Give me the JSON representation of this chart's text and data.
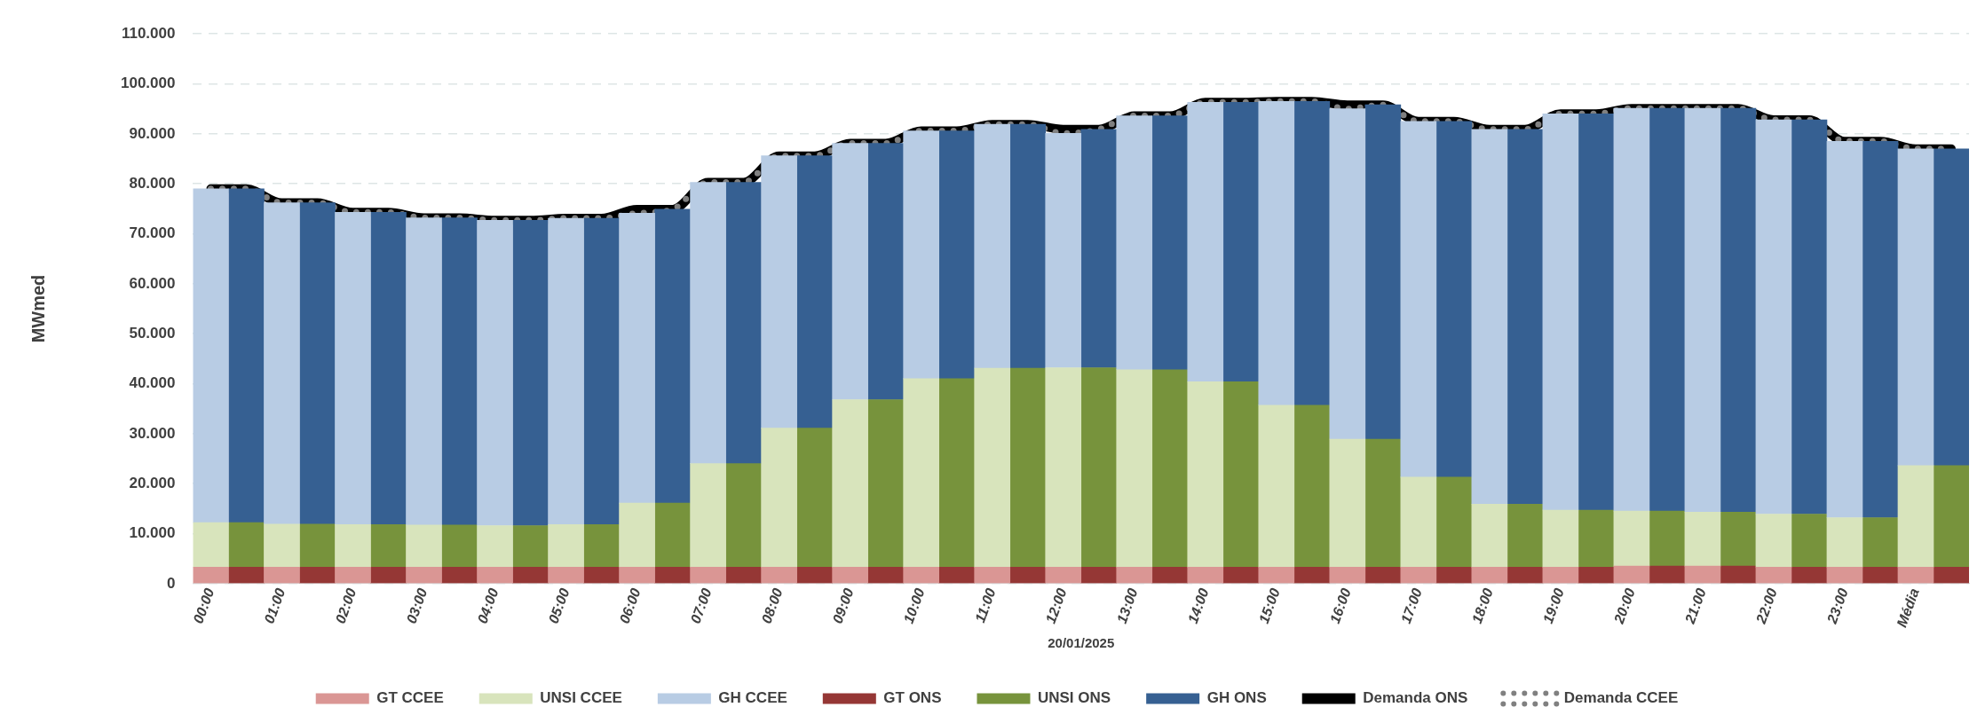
{
  "chart_data": {
    "type": "bar",
    "stacked": true,
    "xlabel": "20/01/2025",
    "ylabel": "MWmed",
    "categories": [
      "00:00",
      null,
      "01:00",
      null,
      "02:00",
      null,
      "03:00",
      null,
      "04:00",
      null,
      "05:00",
      null,
      "06:00",
      null,
      "07:00",
      null,
      "08:00",
      null,
      "09:00",
      null,
      "10:00",
      null,
      "11:00",
      null,
      "12:00",
      null,
      "13:00",
      null,
      "14:00",
      null,
      "15:00",
      null,
      "16:00",
      null,
      "17:00",
      null,
      "18:00",
      null,
      "19:00",
      null,
      "20:00",
      null,
      "21:00",
      null,
      "22:00",
      null,
      "23:00",
      null,
      "Média",
      null
    ],
    "series": [
      {
        "name": "GT CCEE",
        "color": "#da9694",
        "values": [
          3300,
          null,
          3300,
          null,
          3300,
          null,
          3300,
          null,
          3300,
          null,
          3300,
          null,
          3300,
          null,
          3300,
          null,
          3300,
          null,
          3300,
          null,
          3300,
          null,
          3300,
          null,
          3300,
          null,
          3300,
          null,
          3300,
          null,
          3300,
          null,
          3300,
          null,
          3300,
          null,
          3300,
          null,
          3300,
          null,
          3500,
          null,
          3500,
          null,
          3300,
          null,
          3300,
          null,
          3300,
          null
        ]
      },
      {
        "name": "UNSI CCEE",
        "color": "#d8e4bc",
        "values": [
          8900,
          null,
          8600,
          null,
          8500,
          null,
          8400,
          null,
          8300,
          null,
          8500,
          null,
          12800,
          null,
          20700,
          null,
          27800,
          null,
          33500,
          null,
          37700,
          null,
          39800,
          null,
          39900,
          null,
          39500,
          null,
          37100,
          null,
          32400,
          null,
          25600,
          null,
          18000,
          null,
          12600,
          null,
          11400,
          null,
          11000,
          null,
          10800,
          null,
          10600,
          null,
          9900,
          null,
          20300,
          null
        ]
      },
      {
        "name": "GH CCEE",
        "color": "#b8cce4",
        "values": [
          66800,
          null,
          64300,
          null,
          62500,
          null,
          61500,
          null,
          61100,
          null,
          61300,
          null,
          58000,
          null,
          56300,
          null,
          54500,
          null,
          51300,
          null,
          49600,
          null,
          48800,
          null,
          46900,
          null,
          50800,
          null,
          55900,
          null,
          60800,
          null,
          66100,
          null,
          71200,
          null,
          75000,
          null,
          79300,
          null,
          80600,
          null,
          80800,
          null,
          78900,
          null,
          75300,
          null,
          63400,
          null
        ]
      },
      {
        "name": "GT ONS",
        "color": "#953735",
        "values": [
          null,
          3300,
          null,
          3300,
          null,
          3300,
          null,
          3300,
          null,
          3300,
          null,
          3300,
          null,
          3300,
          null,
          3300,
          null,
          3300,
          null,
          3300,
          null,
          3300,
          null,
          3300,
          null,
          3300,
          null,
          3300,
          null,
          3300,
          null,
          3300,
          null,
          3300,
          null,
          3300,
          null,
          3300,
          null,
          3300,
          null,
          3500,
          null,
          3500,
          null,
          3300,
          null,
          3300,
          null,
          3300
        ]
      },
      {
        "name": "UNSI ONS",
        "color": "#77933c",
        "values": [
          null,
          8900,
          null,
          8600,
          null,
          8500,
          null,
          8400,
          null,
          8300,
          null,
          8500,
          null,
          12800,
          null,
          20700,
          null,
          27800,
          null,
          33500,
          null,
          37700,
          null,
          39800,
          null,
          39900,
          null,
          39500,
          null,
          37100,
          null,
          32400,
          null,
          25600,
          null,
          18000,
          null,
          12600,
          null,
          11400,
          null,
          11000,
          null,
          10800,
          null,
          10600,
          null,
          9900,
          null,
          20300
        ]
      },
      {
        "name": "GH ONS",
        "color": "#366092",
        "values": [
          null,
          66800,
          null,
          64300,
          null,
          62500,
          null,
          61500,
          null,
          61100,
          null,
          61300,
          null,
          58800,
          null,
          56300,
          null,
          54500,
          null,
          51300,
          null,
          49600,
          null,
          48800,
          null,
          47700,
          null,
          50800,
          null,
          55900,
          null,
          60800,
          null,
          66900,
          null,
          71200,
          null,
          75000,
          null,
          79300,
          null,
          80600,
          null,
          80800,
          null,
          78900,
          null,
          75300,
          null,
          63400
        ]
      },
      {
        "name": "Demanda ONS",
        "type": "line",
        "color": "#000000",
        "line_style": "solid",
        "values": [
          79000,
          79000,
          76200,
          76200,
          74300,
          74300,
          73200,
          73200,
          72700,
          72700,
          73100,
          73100,
          74900,
          74900,
          80300,
          80300,
          85600,
          85600,
          88100,
          88100,
          90600,
          90600,
          91900,
          91900,
          90900,
          90900,
          93600,
          93600,
          96300,
          96300,
          96500,
          96500,
          95800,
          95800,
          92500,
          92500,
          90900,
          90900,
          94000,
          94000,
          95100,
          95100,
          95100,
          95100,
          92800,
          92800,
          88500,
          88500,
          87000,
          87000
        ]
      },
      {
        "name": "Demanda CCEE",
        "type": "line",
        "color": "#808080",
        "line_style": "dotted",
        "values": [
          79000,
          79000,
          76200,
          76200,
          74300,
          74300,
          73200,
          73200,
          72700,
          72700,
          73100,
          73100,
          74100,
          74900,
          80300,
          80300,
          85600,
          85600,
          88100,
          88100,
          90600,
          90600,
          91900,
          91900,
          90100,
          90900,
          93600,
          93600,
          96300,
          96300,
          96500,
          96500,
          95000,
          95800,
          92500,
          92500,
          90900,
          90900,
          94000,
          94000,
          95100,
          95100,
          95100,
          95100,
          92800,
          92800,
          88500,
          88500,
          87000,
          87000
        ]
      }
    ],
    "ylim": [
      0,
      110000
    ],
    "yticks": [
      0,
      {
        "value": 10000,
        "label": "10.000"
      },
      {
        "value": 20000,
        "label": "20.000"
      },
      {
        "value": 30000,
        "label": "30.000"
      },
      {
        "value": 40000,
        "label": "40.000"
      },
      {
        "value": 50000,
        "label": "50.000"
      },
      {
        "value": 60000,
        "label": "60.000"
      },
      {
        "value": 70000,
        "label": "70.000"
      },
      {
        "value": 80000,
        "label": "80.000"
      },
      {
        "value": 90000,
        "label": "90.000"
      },
      {
        "value": 100000,
        "label": "100.000"
      },
      {
        "value": 110000,
        "label": "110.000"
      }
    ],
    "grid": "y",
    "legend": "bottom",
    "marker": "none"
  }
}
